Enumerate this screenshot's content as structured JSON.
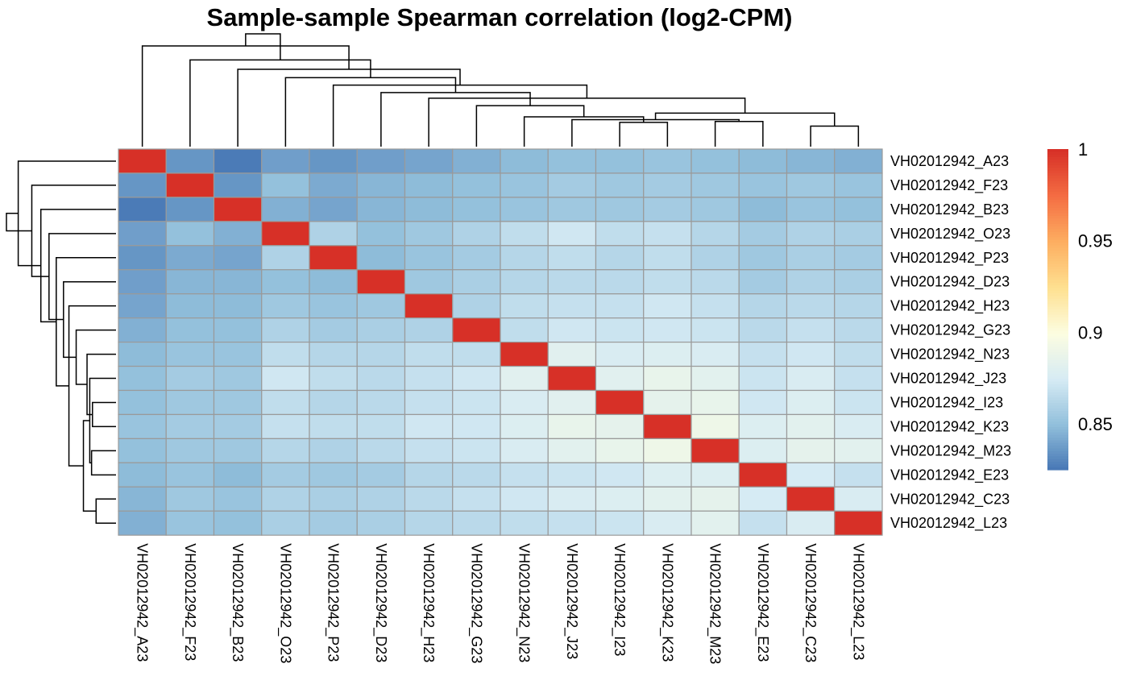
{
  "chart_data": {
    "type": "heatmap",
    "title": "Sample-sample Spearman correlation (log2-CPM)",
    "row_labels": [
      "VH02012942_A23",
      "VH02012942_F23",
      "VH02012942_B23",
      "VH02012942_O23",
      "VH02012942_P23",
      "VH02012942_D23",
      "VH02012942_H23",
      "VH02012942_G23",
      "VH02012942_N23",
      "VH02012942_J23",
      "VH02012942_I23",
      "VH02012942_K23",
      "VH02012942_M23",
      "VH02012942_E23",
      "VH02012942_C23",
      "VH02012942_L23"
    ],
    "col_labels": [
      "VH02012942_A23",
      "VH02012942_F23",
      "VH02012942_B23",
      "VH02012942_O23",
      "VH02012942_P23",
      "VH02012942_D23",
      "VH02012942_H23",
      "VH02012942_G23",
      "VH02012942_N23",
      "VH02012942_J23",
      "VH02012942_I23",
      "VH02012942_K23",
      "VH02012942_M23",
      "VH02012942_E23",
      "VH02012942_C23",
      "VH02012942_L23"
    ],
    "values": [
      [
        1.0,
        0.836,
        0.827,
        0.839,
        0.836,
        0.839,
        0.841,
        0.845,
        0.849,
        0.851,
        0.851,
        0.853,
        0.851,
        0.849,
        0.847,
        0.845
      ],
      [
        0.836,
        1.0,
        0.836,
        0.851,
        0.843,
        0.847,
        0.849,
        0.851,
        0.853,
        0.857,
        0.855,
        0.857,
        0.855,
        0.853,
        0.855,
        0.853
      ],
      [
        0.827,
        0.836,
        1.0,
        0.845,
        0.841,
        0.847,
        0.849,
        0.851,
        0.853,
        0.855,
        0.855,
        0.857,
        0.855,
        0.849,
        0.853,
        0.851
      ],
      [
        0.839,
        0.851,
        0.845,
        1.0,
        0.861,
        0.851,
        0.855,
        0.861,
        0.867,
        0.873,
        0.867,
        0.869,
        0.863,
        0.857,
        0.861,
        0.859
      ],
      [
        0.836,
        0.843,
        0.841,
        0.861,
        1.0,
        0.849,
        0.853,
        0.857,
        0.863,
        0.867,
        0.863,
        0.867,
        0.861,
        0.855,
        0.859,
        0.857
      ],
      [
        0.839,
        0.847,
        0.847,
        0.851,
        0.849,
        1.0,
        0.855,
        0.859,
        0.863,
        0.865,
        0.865,
        0.867,
        0.865,
        0.857,
        0.861,
        0.859
      ],
      [
        0.841,
        0.849,
        0.849,
        0.855,
        0.853,
        0.855,
        1.0,
        0.861,
        0.867,
        0.869,
        0.869,
        0.873,
        0.869,
        0.863,
        0.865,
        0.863
      ],
      [
        0.845,
        0.851,
        0.851,
        0.861,
        0.857,
        0.859,
        0.861,
        1.0,
        0.867,
        0.873,
        0.871,
        0.873,
        0.871,
        0.865,
        0.869,
        0.865
      ],
      [
        0.849,
        0.853,
        0.853,
        0.867,
        0.863,
        0.863,
        0.867,
        0.867,
        1.0,
        0.882,
        0.877,
        0.879,
        0.877,
        0.869,
        0.873,
        0.867
      ],
      [
        0.851,
        0.857,
        0.855,
        0.873,
        0.867,
        0.865,
        0.869,
        0.873,
        0.882,
        1.0,
        0.882,
        0.887,
        0.883,
        0.871,
        0.877,
        0.869
      ],
      [
        0.851,
        0.855,
        0.855,
        0.867,
        0.863,
        0.865,
        0.869,
        0.871,
        0.877,
        0.882,
        1.0,
        0.885,
        0.887,
        0.873,
        0.879,
        0.871
      ],
      [
        0.853,
        0.857,
        0.857,
        0.869,
        0.867,
        0.867,
        0.873,
        0.873,
        0.879,
        0.887,
        0.885,
        1.0,
        0.891,
        0.879,
        0.883,
        0.877
      ],
      [
        0.851,
        0.855,
        0.855,
        0.863,
        0.861,
        0.865,
        0.869,
        0.871,
        0.877,
        0.883,
        0.887,
        0.891,
        1.0,
        0.879,
        0.885,
        0.883
      ],
      [
        0.849,
        0.853,
        0.849,
        0.857,
        0.855,
        0.857,
        0.863,
        0.865,
        0.869,
        0.871,
        0.873,
        0.879,
        0.879,
        1.0,
        0.875,
        0.869
      ],
      [
        0.847,
        0.855,
        0.853,
        0.861,
        0.859,
        0.861,
        0.865,
        0.869,
        0.873,
        0.877,
        0.879,
        0.883,
        0.885,
        0.875,
        1.0,
        0.877
      ],
      [
        0.845,
        0.853,
        0.851,
        0.859,
        0.857,
        0.859,
        0.863,
        0.865,
        0.867,
        0.869,
        0.871,
        0.877,
        0.883,
        0.869,
        0.877,
        1.0
      ]
    ],
    "color_scale": {
      "min": 0.825,
      "max": 1.0,
      "stops": [
        {
          "value": 0.825,
          "color": "#4575b4"
        },
        {
          "value": 0.85,
          "color": "#91bfdb"
        },
        {
          "value": 0.875,
          "color": "#d6ebf4"
        },
        {
          "value": 0.9,
          "color": "#fcfde1"
        },
        {
          "value": 0.925,
          "color": "#fee090"
        },
        {
          "value": 0.95,
          "color": "#fdae61"
        },
        {
          "value": 0.975,
          "color": "#f46d43"
        },
        {
          "value": 1.0,
          "color": "#d73027"
        }
      ]
    },
    "legend_ticks": [
      {
        "value": 1.0,
        "label": "1"
      },
      {
        "value": 0.95,
        "label": "0.95"
      },
      {
        "value": 0.9,
        "label": "0.9"
      },
      {
        "value": 0.85,
        "label": "0.85"
      }
    ],
    "legend_position": "right",
    "cell_border_color": "#9a9a9a",
    "dendrogram": {
      "merges": [
        [
          14,
          15
        ],
        [
          12,
          13
        ],
        [
          10,
          11
        ],
        [
          9,
          17
        ],
        [
          8,
          18
        ],
        [
          16,
          19
        ],
        [
          7,
          20
        ],
        [
          6,
          21
        ],
        [
          5,
          22
        ],
        [
          4,
          23
        ],
        [
          3,
          24
        ],
        [
          2,
          25
        ],
        [
          1,
          26
        ],
        [
          0,
          27
        ],
        [
          28,
          29
        ]
      ],
      "heights": [
        0.022,
        0.027,
        0.026,
        0.029,
        0.032,
        0.036,
        0.044,
        0.052,
        0.058,
        0.066,
        0.074,
        0.083,
        0.093,
        0.108,
        0.121
      ]
    }
  }
}
